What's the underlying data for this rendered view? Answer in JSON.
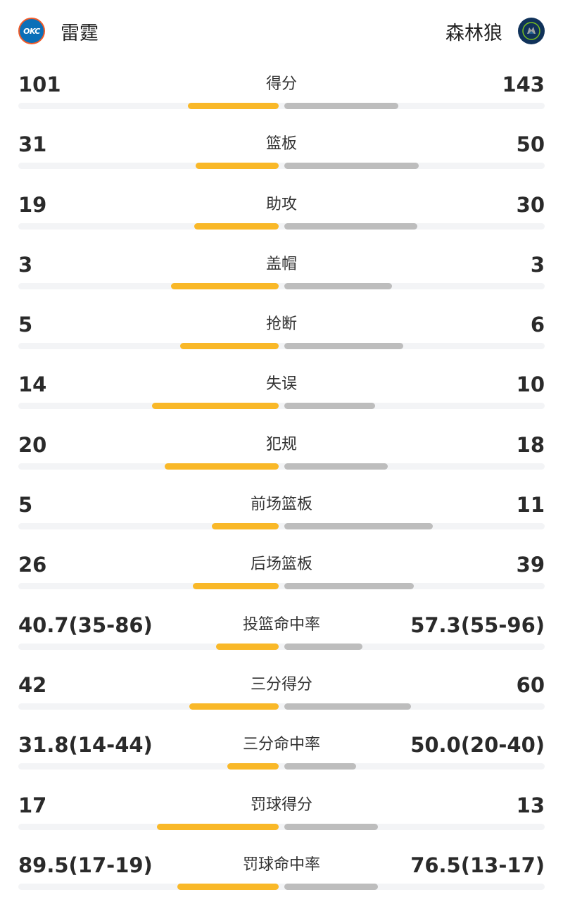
{
  "header": {
    "home": {
      "name": "雷霆",
      "logo_text": "OKC",
      "logo_icon": "okc-thunder-logo"
    },
    "away": {
      "name": "森林狼",
      "logo_icon": "timberwolves-logo"
    }
  },
  "colors": {
    "home_bar": "#f9b828",
    "away_bar": "#bdbdbd",
    "track": "#f3f4f6"
  },
  "stats": [
    {
      "label": "得分",
      "home": "101",
      "away": "143",
      "home_share": 0.58,
      "away_share": 0.73
    },
    {
      "label": "篮板",
      "home": "31",
      "away": "50",
      "home_share": 0.53,
      "away_share": 0.86
    },
    {
      "label": "助攻",
      "home": "19",
      "away": "30",
      "home_share": 0.54,
      "away_share": 0.85
    },
    {
      "label": "盖帽",
      "home": "3",
      "away": "3",
      "home_share": 0.69,
      "away_share": 0.69
    },
    {
      "label": "抢断",
      "home": "5",
      "away": "6",
      "home_share": 0.63,
      "away_share": 0.76
    },
    {
      "label": "失误",
      "home": "14",
      "away": "10",
      "home_share": 0.81,
      "away_share": 0.58
    },
    {
      "label": "犯规",
      "home": "20",
      "away": "18",
      "home_share": 0.73,
      "away_share": 0.66
    },
    {
      "label": "前场篮板",
      "home": "5",
      "away": "11",
      "home_share": 0.43,
      "away_share": 0.95
    },
    {
      "label": "后场篮板",
      "home": "26",
      "away": "39",
      "home_share": 0.55,
      "away_share": 0.83
    },
    {
      "label": "投篮命中率",
      "home": "40.7(35-86)",
      "away": "57.3(55-96)",
      "home_share": 0.4,
      "away_share": 0.5
    },
    {
      "label": "三分得分",
      "home": "42",
      "away": "60",
      "home_share": 0.57,
      "away_share": 0.81
    },
    {
      "label": "三分命中率",
      "home": "31.8(14-44)",
      "away": "50.0(20-40)",
      "home_share": 0.33,
      "away_share": 0.46
    },
    {
      "label": "罚球得分",
      "home": "17",
      "away": "13",
      "home_share": 0.78,
      "away_share": 0.6
    },
    {
      "label": "罚球命中率",
      "home": "89.5(17-19)",
      "away": "76.5(13-17)",
      "home_share": 0.65,
      "away_share": 0.6
    }
  ]
}
